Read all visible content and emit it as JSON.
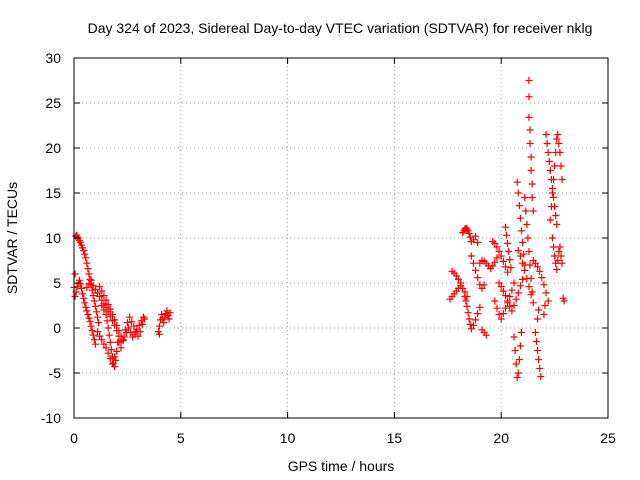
{
  "chart_data": {
    "type": "scatter",
    "title": "Day 324 of 2023, Sidereal Day-to-day VTEC variation (SDTVAR) for receiver nklg",
    "xlabel": "GPS time / hours",
    "ylabel": "SDTVAR / TECUs",
    "xlim": [
      0,
      25
    ],
    "ylim": [
      -10,
      30
    ],
    "xticks": [
      0,
      5,
      10,
      15,
      20,
      25
    ],
    "yticks": [
      -10,
      -5,
      0,
      5,
      10,
      15,
      20,
      25,
      30
    ],
    "xtick_labels": [
      "0",
      "5",
      "10",
      "15",
      "20",
      "25"
    ],
    "ytick_labels": [
      "-10",
      "-5",
      "0",
      "5",
      "10",
      "15",
      "20",
      "25",
      "30"
    ],
    "grid": true,
    "grid_style": "dotted",
    "legend": "none",
    "marker": "+",
    "colors": {
      "points": "#ff0000",
      "axis": "#000000",
      "grid": "#a0a0a0"
    },
    "series": [
      {
        "name": "SDTVAR",
        "points": [
          [
            0.0,
            4.5
          ],
          [
            0.05,
            6.0
          ],
          [
            0.08,
            10.2
          ],
          [
            0.12,
            10.3
          ],
          [
            0.15,
            10.1
          ],
          [
            0.2,
            10.0
          ],
          [
            0.25,
            9.7
          ],
          [
            0.3,
            9.5
          ],
          [
            0.35,
            9.2
          ],
          [
            0.4,
            8.9
          ],
          [
            0.45,
            8.6
          ],
          [
            0.5,
            8.2
          ],
          [
            0.55,
            7.8
          ],
          [
            0.6,
            7.2
          ],
          [
            0.65,
            6.6
          ],
          [
            0.7,
            6.0
          ],
          [
            0.75,
            5.4
          ],
          [
            0.8,
            4.8
          ],
          [
            0.85,
            4.2
          ],
          [
            0.9,
            3.6
          ],
          [
            0.95,
            3.0
          ],
          [
            1.0,
            2.4
          ],
          [
            1.05,
            1.8
          ],
          [
            1.1,
            1.2
          ],
          [
            1.15,
            0.6
          ],
          [
            0.05,
            3.5
          ],
          [
            0.1,
            4.0
          ],
          [
            0.15,
            4.6
          ],
          [
            0.2,
            5.0
          ],
          [
            0.25,
            5.3
          ],
          [
            0.3,
            4.9
          ],
          [
            0.35,
            4.4
          ],
          [
            0.4,
            3.8
          ],
          [
            0.45,
            3.3
          ],
          [
            0.5,
            2.8
          ],
          [
            0.55,
            2.3
          ],
          [
            0.6,
            1.9
          ],
          [
            0.65,
            1.5
          ],
          [
            0.7,
            1.1
          ],
          [
            0.75,
            0.7
          ],
          [
            0.8,
            0.2
          ],
          [
            0.85,
            -0.3
          ],
          [
            0.9,
            -0.8
          ],
          [
            0.95,
            -1.3
          ],
          [
            1.0,
            -1.8
          ],
          [
            0.6,
            4.5
          ],
          [
            0.7,
            4.9
          ],
          [
            0.8,
            5.3
          ],
          [
            0.9,
            4.7
          ],
          [
            1.0,
            4.3
          ],
          [
            1.1,
            3.9
          ],
          [
            1.2,
            3.5
          ],
          [
            1.3,
            3.1
          ],
          [
            1.4,
            2.7
          ],
          [
            1.5,
            2.3
          ],
          [
            1.6,
            1.8
          ],
          [
            1.7,
            1.3
          ],
          [
            1.8,
            0.8
          ],
          [
            1.9,
            0.3
          ],
          [
            2.0,
            -0.3
          ],
          [
            2.1,
            -0.9
          ],
          [
            2.2,
            -1.5
          ],
          [
            1.2,
            4.6
          ],
          [
            1.3,
            4.1
          ],
          [
            1.4,
            3.6
          ],
          [
            1.5,
            3.1
          ],
          [
            1.6,
            2.6
          ],
          [
            1.7,
            2.1
          ],
          [
            1.8,
            1.5
          ],
          [
            1.9,
            0.9
          ],
          [
            2.0,
            0.3
          ],
          [
            2.1,
            -0.3
          ],
          [
            2.2,
            -0.9
          ],
          [
            2.3,
            -1.4
          ],
          [
            1.3,
            2.5
          ],
          [
            1.4,
            2.0
          ],
          [
            1.5,
            1.5
          ],
          [
            1.55,
            0.8
          ],
          [
            1.6,
            0.0
          ],
          [
            1.65,
            -0.8
          ],
          [
            1.7,
            -1.6
          ],
          [
            1.75,
            -2.4
          ],
          [
            1.8,
            -3.2
          ],
          [
            1.85,
            -3.9
          ],
          [
            1.9,
            -4.3
          ],
          [
            1.95,
            -3.6
          ],
          [
            2.0,
            -2.6
          ],
          [
            2.05,
            -1.6
          ],
          [
            1.1,
            -0.4
          ],
          [
            1.2,
            -0.9
          ],
          [
            1.3,
            -1.3
          ],
          [
            1.4,
            -1.8
          ],
          [
            1.5,
            -2.2
          ],
          [
            1.6,
            -2.8
          ],
          [
            1.7,
            -3.4
          ],
          [
            1.8,
            -4.0
          ],
          [
            1.9,
            -3.2
          ],
          [
            2.1,
            -1.6
          ],
          [
            2.2,
            -2.2
          ],
          [
            2.3,
            -1.3
          ],
          [
            2.4,
            -0.2
          ],
          [
            2.5,
            0.6
          ],
          [
            2.6,
            1.2
          ],
          [
            2.7,
            0.7
          ],
          [
            2.8,
            0.2
          ],
          [
            2.9,
            -0.4
          ],
          [
            3.0,
            -0.9
          ],
          [
            3.1,
            -0.4
          ],
          [
            3.2,
            0.4
          ],
          [
            3.3,
            1.0
          ],
          [
            2.35,
            -1.0
          ],
          [
            2.45,
            -0.5
          ],
          [
            2.55,
            0.0
          ],
          [
            2.65,
            -0.5
          ],
          [
            2.75,
            -1.0
          ],
          [
            2.85,
            -0.7
          ],
          [
            2.95,
            -0.2
          ],
          [
            3.05,
            0.3
          ],
          [
            3.15,
            0.8
          ],
          [
            3.25,
            1.2
          ],
          [
            4.0,
            0.2
          ],
          [
            4.05,
            0.9
          ],
          [
            4.1,
            1.5
          ],
          [
            4.15,
            1.0
          ],
          [
            4.2,
            0.6
          ],
          [
            4.25,
            1.2
          ],
          [
            4.3,
            1.6
          ],
          [
            4.35,
            1.9
          ],
          [
            4.4,
            1.4
          ],
          [
            4.45,
            1.0
          ],
          [
            4.5,
            1.7
          ],
          [
            3.95,
            -0.4
          ],
          [
            4.0,
            -0.7
          ],
          [
            17.6,
            3.2
          ],
          [
            17.7,
            3.5
          ],
          [
            17.8,
            3.8
          ],
          [
            17.9,
            4.1
          ],
          [
            18.0,
            4.4
          ],
          [
            18.1,
            4.7
          ],
          [
            18.2,
            4.4
          ],
          [
            18.3,
            4.0
          ],
          [
            18.4,
            3.5
          ],
          [
            17.7,
            6.3
          ],
          [
            17.8,
            6.1
          ],
          [
            17.9,
            5.8
          ],
          [
            18.0,
            5.4
          ],
          [
            18.1,
            5.0
          ],
          [
            18.2,
            10.6
          ],
          [
            18.25,
            10.8
          ],
          [
            18.3,
            11.0
          ],
          [
            18.35,
            11.1
          ],
          [
            18.4,
            11.0
          ],
          [
            18.45,
            10.8
          ],
          [
            18.5,
            10.5
          ],
          [
            18.55,
            10.1
          ],
          [
            18.6,
            9.6
          ],
          [
            18.7,
            9.8
          ],
          [
            18.8,
            10.2
          ],
          [
            18.9,
            9.5
          ],
          [
            18.3,
            3.5
          ],
          [
            18.35,
            3.0
          ],
          [
            18.4,
            2.4
          ],
          [
            18.45,
            1.7
          ],
          [
            18.5,
            1.0
          ],
          [
            18.55,
            0.4
          ],
          [
            18.6,
            -0.1
          ],
          [
            18.7,
            0.3
          ],
          [
            18.8,
            0.9
          ],
          [
            18.9,
            1.6
          ],
          [
            19.0,
            2.3
          ],
          [
            19.1,
            -0.2
          ],
          [
            19.2,
            -0.5
          ],
          [
            19.3,
            -0.8
          ],
          [
            18.6,
            8.0
          ],
          [
            18.7,
            7.2
          ],
          [
            18.8,
            6.4
          ],
          [
            18.9,
            5.6
          ],
          [
            19.0,
            4.8
          ],
          [
            19.1,
            4.4
          ],
          [
            19.2,
            4.8
          ],
          [
            19.0,
            7.2
          ],
          [
            19.1,
            7.5
          ],
          [
            19.2,
            7.4
          ],
          [
            19.3,
            7.2
          ],
          [
            19.4,
            6.9
          ],
          [
            19.5,
            6.6
          ],
          [
            19.6,
            6.9
          ],
          [
            19.7,
            7.3
          ],
          [
            19.8,
            7.8
          ],
          [
            19.6,
            9.6
          ],
          [
            19.7,
            9.4
          ],
          [
            19.8,
            9.0
          ],
          [
            19.9,
            8.5
          ],
          [
            20.0,
            8.0
          ],
          [
            20.1,
            7.4
          ],
          [
            20.2,
            6.8
          ],
          [
            20.3,
            6.2
          ],
          [
            19.7,
            3.0
          ],
          [
            19.8,
            2.2
          ],
          [
            19.9,
            1.5
          ],
          [
            20.0,
            1.0
          ],
          [
            20.1,
            1.6
          ],
          [
            20.2,
            2.2
          ],
          [
            20.3,
            2.8
          ],
          [
            20.4,
            3.5
          ],
          [
            20.5,
            4.2
          ],
          [
            20.6,
            5.0
          ],
          [
            19.9,
            5.0
          ],
          [
            20.0,
            4.6
          ],
          [
            20.1,
            4.1
          ],
          [
            20.2,
            3.6
          ],
          [
            20.3,
            3.0
          ],
          [
            20.4,
            2.4
          ],
          [
            20.5,
            1.9
          ],
          [
            20.6,
            2.5
          ],
          [
            20.7,
            3.2
          ],
          [
            20.8,
            3.9
          ],
          [
            20.9,
            4.7
          ],
          [
            21.0,
            5.4
          ],
          [
            20.2,
            11.2
          ],
          [
            20.25,
            10.3
          ],
          [
            20.3,
            9.4
          ],
          [
            20.35,
            8.5
          ],
          [
            20.4,
            7.6
          ],
          [
            20.45,
            6.7
          ],
          [
            20.6,
            -1.0
          ],
          [
            20.65,
            -2.5
          ],
          [
            20.7,
            -4.0
          ],
          [
            20.75,
            -5.5
          ],
          [
            20.8,
            -5.0
          ],
          [
            20.85,
            -3.5
          ],
          [
            20.9,
            -2.0
          ],
          [
            20.95,
            -0.5
          ],
          [
            20.75,
            16.2
          ],
          [
            20.8,
            15.0
          ],
          [
            20.85,
            13.6
          ],
          [
            20.9,
            12.2
          ],
          [
            20.95,
            10.8
          ],
          [
            21.0,
            9.5
          ],
          [
            21.05,
            8.2
          ],
          [
            21.1,
            7.0
          ],
          [
            20.8,
            8.6
          ],
          [
            20.9,
            8.0
          ],
          [
            21.0,
            7.2
          ],
          [
            21.1,
            6.4
          ],
          [
            21.2,
            5.5
          ],
          [
            21.3,
            4.6
          ],
          [
            21.4,
            3.7
          ],
          [
            21.5,
            2.8
          ],
          [
            21.1,
            14.5
          ],
          [
            21.15,
            13.0
          ],
          [
            21.2,
            11.5
          ],
          [
            21.25,
            10.0
          ],
          [
            21.3,
            8.5
          ],
          [
            21.35,
            7.0
          ],
          [
            21.4,
            5.5
          ],
          [
            21.45,
            4.0
          ],
          [
            21.3,
            27.5
          ],
          [
            21.3,
            25.7
          ],
          [
            21.3,
            23.4
          ],
          [
            21.35,
            22.0
          ],
          [
            21.35,
            20.5
          ],
          [
            21.4,
            19.0
          ],
          [
            21.4,
            17.5
          ],
          [
            21.45,
            16.0
          ],
          [
            21.45,
            14.5
          ],
          [
            21.5,
            13.0
          ],
          [
            21.5,
            7.5
          ],
          [
            21.6,
            7.2
          ],
          [
            21.7,
            6.8
          ],
          [
            21.8,
            6.3
          ],
          [
            21.9,
            5.6
          ],
          [
            22.0,
            4.8
          ],
          [
            22.1,
            3.9
          ],
          [
            22.2,
            3.0
          ],
          [
            21.6,
            -0.5
          ],
          [
            21.65,
            -1.5
          ],
          [
            21.7,
            -2.5
          ],
          [
            21.75,
            -3.5
          ],
          [
            21.8,
            -4.5
          ],
          [
            21.85,
            -5.4
          ],
          [
            21.7,
            1.0
          ],
          [
            21.75,
            2.0
          ],
          [
            22.0,
            1.5
          ],
          [
            22.05,
            2.5
          ],
          [
            22.1,
            21.5
          ],
          [
            22.15,
            20.5
          ],
          [
            22.2,
            19.5
          ],
          [
            22.25,
            18.5
          ],
          [
            22.3,
            17.5
          ],
          [
            22.35,
            16.5
          ],
          [
            22.4,
            15.5
          ],
          [
            22.45,
            14.5
          ],
          [
            22.5,
            13.5
          ],
          [
            22.55,
            12.5
          ],
          [
            22.6,
            11.5
          ],
          [
            22.3,
            12.0
          ],
          [
            22.35,
            13.5
          ],
          [
            22.4,
            15.0
          ],
          [
            22.45,
            16.5
          ],
          [
            22.5,
            18.0
          ],
          [
            22.55,
            19.5
          ],
          [
            22.6,
            21.0
          ],
          [
            22.65,
            21.5
          ],
          [
            22.7,
            20.5
          ],
          [
            22.75,
            19.5
          ],
          [
            22.8,
            18.0
          ],
          [
            22.85,
            16.5
          ],
          [
            22.4,
            10.0
          ],
          [
            22.45,
            9.0
          ],
          [
            22.5,
            8.0
          ],
          [
            22.55,
            7.2
          ],
          [
            22.6,
            6.5
          ],
          [
            22.65,
            7.5
          ],
          [
            22.7,
            8.5
          ],
          [
            22.75,
            9.0
          ],
          [
            22.8,
            8.0
          ],
          [
            22.85,
            7.2
          ],
          [
            22.9,
            3.3
          ],
          [
            22.95,
            3.0
          ]
        ]
      }
    ]
  }
}
